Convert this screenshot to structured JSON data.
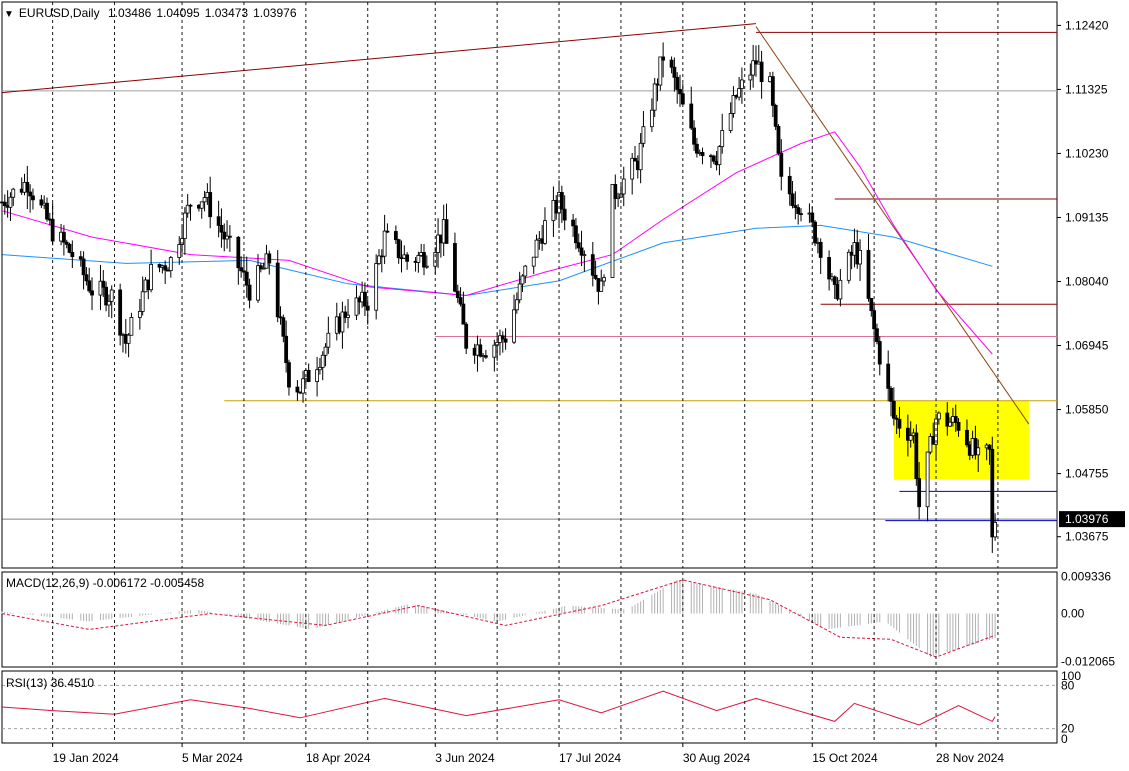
{
  "chart_data": {
    "type": "candlestick",
    "symbol": "EURUSD",
    "timeframe": "Daily",
    "ohlc_header": {
      "open": "1.03486",
      "high": "1.04095",
      "low": "1.03473",
      "close": "1.03976"
    },
    "price_axis": {
      "ylim": [
        1.0314,
        1.1282
      ],
      "ticks": [
        "1.12420",
        "1.11325",
        "1.10230",
        "1.09135",
        "1.08040",
        "1.06945",
        "1.05850",
        "1.04755",
        "1.03675"
      ],
      "current_price_label": "1.03976"
    },
    "x_axis": {
      "labels": [
        "19 Jan 2024",
        "5 Mar 2024",
        "18 Apr 2024",
        "3 Jun 2024",
        "17 Jul 2024",
        "30 Aug 2024",
        "15 Oct 2024",
        "28 Nov 2024"
      ]
    },
    "close_series": [
      {
        "date": "2024-01-01",
        "close": 1.094
      },
      {
        "date": "2024-01-10",
        "close": 1.0975
      },
      {
        "date": "2024-01-19",
        "close": 1.089
      },
      {
        "date": "2024-01-26",
        "close": 1.085
      },
      {
        "date": "2024-02-02",
        "close": 1.079
      },
      {
        "date": "2024-02-09",
        "close": 1.078
      },
      {
        "date": "2024-02-14",
        "close": 1.07
      },
      {
        "date": "2024-02-23",
        "close": 1.082
      },
      {
        "date": "2024-03-01",
        "close": 1.084
      },
      {
        "date": "2024-03-08",
        "close": 1.094
      },
      {
        "date": "2024-03-13",
        "close": 1.095
      },
      {
        "date": "2024-03-20",
        "close": 1.088
      },
      {
        "date": "2024-03-29",
        "close": 1.079
      },
      {
        "date": "2024-04-05",
        "close": 1.084
      },
      {
        "date": "2024-04-12",
        "close": 1.064
      },
      {
        "date": "2024-04-16",
        "close": 1.062
      },
      {
        "date": "2024-04-26",
        "close": 1.07
      },
      {
        "date": "2024-05-03",
        "close": 1.076
      },
      {
        "date": "2024-05-10",
        "close": 1.077
      },
      {
        "date": "2024-05-16",
        "close": 1.088
      },
      {
        "date": "2024-05-24",
        "close": 1.084
      },
      {
        "date": "2024-05-31",
        "close": 1.085
      },
      {
        "date": "2024-06-06",
        "close": 1.089
      },
      {
        "date": "2024-06-14",
        "close": 1.07
      },
      {
        "date": "2024-06-21",
        "close": 1.069
      },
      {
        "date": "2024-06-28",
        "close": 1.071
      },
      {
        "date": "2024-07-05",
        "close": 1.082
      },
      {
        "date": "2024-07-12",
        "close": 1.09
      },
      {
        "date": "2024-07-17",
        "close": 1.094
      },
      {
        "date": "2024-07-26",
        "close": 1.086
      },
      {
        "date": "2024-08-01",
        "close": 1.079
      },
      {
        "date": "2024-08-05",
        "close": 1.095
      },
      {
        "date": "2024-08-14",
        "close": 1.101
      },
      {
        "date": "2024-08-23",
        "close": 1.119
      },
      {
        "date": "2024-08-26",
        "close": 1.116
      },
      {
        "date": "2024-09-03",
        "close": 1.104
      },
      {
        "date": "2024-09-11",
        "close": 1.102
      },
      {
        "date": "2024-09-18",
        "close": 1.112
      },
      {
        "date": "2024-09-25",
        "close": 1.118
      },
      {
        "date": "2024-09-30",
        "close": 1.1135
      },
      {
        "date": "2024-10-04",
        "close": 1.097
      },
      {
        "date": "2024-10-11",
        "close": 1.0935
      },
      {
        "date": "2024-10-18",
        "close": 1.0865
      },
      {
        "date": "2024-10-23",
        "close": 1.078
      },
      {
        "date": "2024-10-30",
        "close": 1.086
      },
      {
        "date": "2024-11-01",
        "close": 1.084
      },
      {
        "date": "2024-11-06",
        "close": 1.072
      },
      {
        "date": "2024-11-13",
        "close": 1.057
      },
      {
        "date": "2024-11-20",
        "close": 1.054
      },
      {
        "date": "2024-11-22",
        "close": 1.042
      },
      {
        "date": "2024-11-28",
        "close": 1.057
      },
      {
        "date": "2024-12-06",
        "close": 1.056
      },
      {
        "date": "2024-12-13",
        "close": 1.05
      },
      {
        "date": "2024-12-17",
        "close": 1.051
      },
      {
        "date": "2024-12-18",
        "close": 1.036
      },
      {
        "date": "2024-12-19",
        "close": 1.0398
      }
    ],
    "sma_fast": [
      {
        "date": "2024-01-01",
        "value": 1.0925
      },
      {
        "date": "2024-02-02",
        "value": 1.088
      },
      {
        "date": "2024-03-08",
        "value": 1.085
      },
      {
        "date": "2024-04-12",
        "value": 1.084
      },
      {
        "date": "2024-05-10",
        "value": 1.0795
      },
      {
        "date": "2024-06-14",
        "value": 1.078
      },
      {
        "date": "2024-07-12",
        "value": 1.082
      },
      {
        "date": "2024-08-05",
        "value": 1.085
      },
      {
        "date": "2024-08-23",
        "value": 1.091
      },
      {
        "date": "2024-09-18",
        "value": 1.099
      },
      {
        "date": "2024-10-11",
        "value": 1.104
      },
      {
        "date": "2024-10-23",
        "value": 1.106
      },
      {
        "date": "2024-11-01",
        "value": 1.1
      },
      {
        "date": "2024-11-13",
        "value": 1.09
      },
      {
        "date": "2024-11-28",
        "value": 1.079
      },
      {
        "date": "2024-12-18",
        "value": 1.068
      }
    ],
    "sma_slow": [
      {
        "date": "2024-01-01",
        "value": 1.085
      },
      {
        "date": "2024-02-14",
        "value": 1.0835
      },
      {
        "date": "2024-03-29",
        "value": 1.084
      },
      {
        "date": "2024-05-03",
        "value": 1.08
      },
      {
        "date": "2024-06-14",
        "value": 1.078
      },
      {
        "date": "2024-07-17",
        "value": 1.0805
      },
      {
        "date": "2024-08-23",
        "value": 1.087
      },
      {
        "date": "2024-09-25",
        "value": 1.0895
      },
      {
        "date": "2024-10-18",
        "value": 1.09
      },
      {
        "date": "2024-11-13",
        "value": 1.088
      },
      {
        "date": "2024-12-18",
        "value": 1.083
      }
    ],
    "horizontal_levels": [
      {
        "price": 1.123,
        "color": "#8b0000"
      },
      {
        "price": 1.0945,
        "color": "#8b0000"
      },
      {
        "price": 1.0765,
        "color": "#8b0000"
      },
      {
        "price": 1.071,
        "color": "#db7093"
      },
      {
        "price": 1.06,
        "color": "#c8a000"
      },
      {
        "price": 1.0445,
        "color": "#0000cd"
      },
      {
        "price": 1.0395,
        "color": "#0000cd"
      }
    ],
    "trendlines": [
      {
        "from": {
          "date": "2024-01-01",
          "price": 1.1127
        },
        "to": {
          "date": "2024-09-25",
          "price": 1.1245
        },
        "color": "#8b0000"
      },
      {
        "from": {
          "date": "2024-09-25",
          "price": 1.124
        },
        "to": {
          "date": "2024-12-31",
          "price": 1.056
        },
        "color": "#8b4513"
      }
    ],
    "highlight_box": {
      "from_date": "2024-11-13",
      "to_date": "2024-12-31",
      "price_high": 1.06,
      "price_low": 1.0465,
      "color": "#ffff00"
    },
    "macd": {
      "label": "MACD(12,26,9) -0.006172 -0.005458",
      "ticks": [
        "0.009336",
        "0.00",
        "-0.012065"
      ],
      "ylim": [
        -0.0135,
        0.0105
      ],
      "values": [
        {
          "date": "2024-01-01",
          "value": 0.0005
        },
        {
          "date": "2024-02-01",
          "value": -0.002
        },
        {
          "date": "2024-03-10",
          "value": 0.001
        },
        {
          "date": "2024-04-20",
          "value": -0.004
        },
        {
          "date": "2024-05-25",
          "value": 0.0025
        },
        {
          "date": "2024-06-25",
          "value": -0.002
        },
        {
          "date": "2024-07-20",
          "value": 0.002
        },
        {
          "date": "2024-08-10",
          "value": 0.001
        },
        {
          "date": "2024-08-28",
          "value": 0.0085
        },
        {
          "date": "2024-09-25",
          "value": 0.005
        },
        {
          "date": "2024-10-20",
          "value": -0.004
        },
        {
          "date": "2024-11-10",
          "value": -0.002
        },
        {
          "date": "2024-11-26",
          "value": -0.011
        },
        {
          "date": "2024-12-19",
          "value": -0.0062
        }
      ],
      "signal": [
        {
          "date": "2024-01-01",
          "value": 0.0
        },
        {
          "date": "2024-02-01",
          "value": -0.004
        },
        {
          "date": "2024-03-15",
          "value": 0.0
        },
        {
          "date": "2024-04-25",
          "value": -0.003
        },
        {
          "date": "2024-05-28",
          "value": 0.002
        },
        {
          "date": "2024-06-28",
          "value": -0.003
        },
        {
          "date": "2024-08-01",
          "value": 0.002
        },
        {
          "date": "2024-08-30",
          "value": 0.0085
        },
        {
          "date": "2024-09-30",
          "value": 0.0035
        },
        {
          "date": "2024-10-25",
          "value": -0.006
        },
        {
          "date": "2024-11-12",
          "value": -0.0065
        },
        {
          "date": "2024-11-28",
          "value": -0.011
        },
        {
          "date": "2024-12-19",
          "value": -0.0055
        }
      ]
    },
    "rsi": {
      "label": "RSI(13) 36.4510",
      "ticks": [
        "100",
        "80",
        "20",
        "0"
      ],
      "levels": [
        80,
        20
      ],
      "values": [
        {
          "date": "2024-01-01",
          "value": 50
        },
        {
          "date": "2024-01-19",
          "value": 45
        },
        {
          "date": "2024-02-10",
          "value": 40
        },
        {
          "date": "2024-03-08",
          "value": 60
        },
        {
          "date": "2024-03-29",
          "value": 48
        },
        {
          "date": "2024-04-16",
          "value": 35
        },
        {
          "date": "2024-05-16",
          "value": 62
        },
        {
          "date": "2024-06-14",
          "value": 38
        },
        {
          "date": "2024-07-17",
          "value": 60
        },
        {
          "date": "2024-08-01",
          "value": 42
        },
        {
          "date": "2024-08-23",
          "value": 72
        },
        {
          "date": "2024-09-11",
          "value": 45
        },
        {
          "date": "2024-09-25",
          "value": 62
        },
        {
          "date": "2024-10-23",
          "value": 30
        },
        {
          "date": "2024-10-30",
          "value": 55
        },
        {
          "date": "2024-11-22",
          "value": 25
        },
        {
          "date": "2024-12-06",
          "value": 52
        },
        {
          "date": "2024-12-18",
          "value": 30
        },
        {
          "date": "2024-12-19",
          "value": 36.45
        }
      ]
    }
  }
}
